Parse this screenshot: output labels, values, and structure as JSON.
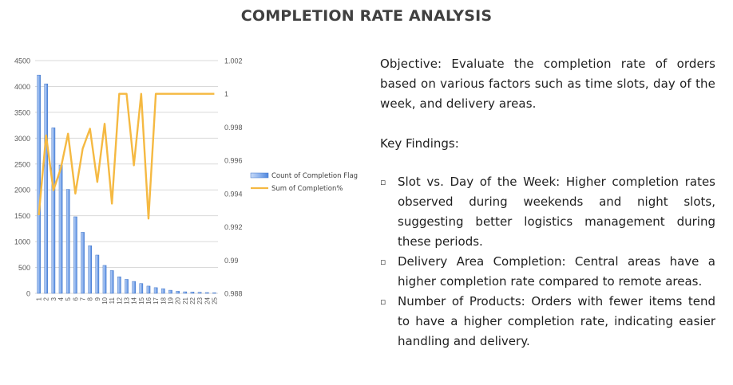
{
  "title": "COMPLETION RATE ANALYSIS",
  "chart_data": {
    "type": "bar",
    "categories": [
      "1",
      "2",
      "3",
      "4",
      "5",
      "6",
      "7",
      "8",
      "9",
      "10",
      "11",
      "12",
      "13",
      "14",
      "15",
      "16",
      "17",
      "18",
      "19",
      "20",
      "21",
      "22",
      "23",
      "24",
      "25"
    ],
    "series": [
      {
        "name": "Count of Completion Flag",
        "type": "bar",
        "axis": "left",
        "color": "#6f9fe8",
        "values": [
          4220,
          4050,
          3200,
          2480,
          2010,
          1480,
          1180,
          920,
          740,
          540,
          440,
          320,
          270,
          230,
          190,
          140,
          110,
          90,
          60,
          40,
          30,
          25,
          20,
          15,
          10
        ]
      },
      {
        "name": "Sum of Completion%",
        "type": "line",
        "axis": "right",
        "color": "#f5b942",
        "values": [
          0.9927,
          0.9975,
          0.9942,
          0.9955,
          0.9976,
          0.994,
          0.9967,
          0.9979,
          0.9947,
          0.9982,
          0.9934,
          1.0,
          1.0,
          0.9957,
          1.0,
          0.9925,
          1.0,
          1.0,
          1.0,
          1.0,
          1.0,
          1.0,
          1.0,
          1.0,
          1.0
        ]
      }
    ],
    "y_left": {
      "ylim": [
        0,
        4500
      ],
      "ticks": [
        "0",
        "500",
        "1000",
        "1500",
        "2000",
        "2500",
        "3000",
        "3500",
        "4000",
        "4500"
      ]
    },
    "y_right": {
      "ylim": [
        0.988,
        1.002
      ],
      "ticks": [
        "0.988",
        "0.99",
        "0.992",
        "0.994",
        "0.996",
        "0.998",
        "1",
        "1.002"
      ]
    },
    "xlabel": "",
    "ylabel": "",
    "grid": true,
    "legend_position": "right"
  },
  "text": {
    "objective": "Objective: Evaluate the completion rate of orders based on various factors such as time slots, day of the week, and delivery areas.",
    "key_findings_title": "Key Findings:",
    "bullet_glyph": "▫",
    "findings": [
      "Slot vs. Day of the Week: Higher completion rates observed during weekends and night slots, suggesting better logistics management during these periods.",
      "Delivery Area Completion: Central areas have a higher completion rate compared to remote areas.",
      "Number of Products: Orders with fewer items tend to have a higher completion rate, indicating easier handling and delivery."
    ]
  }
}
